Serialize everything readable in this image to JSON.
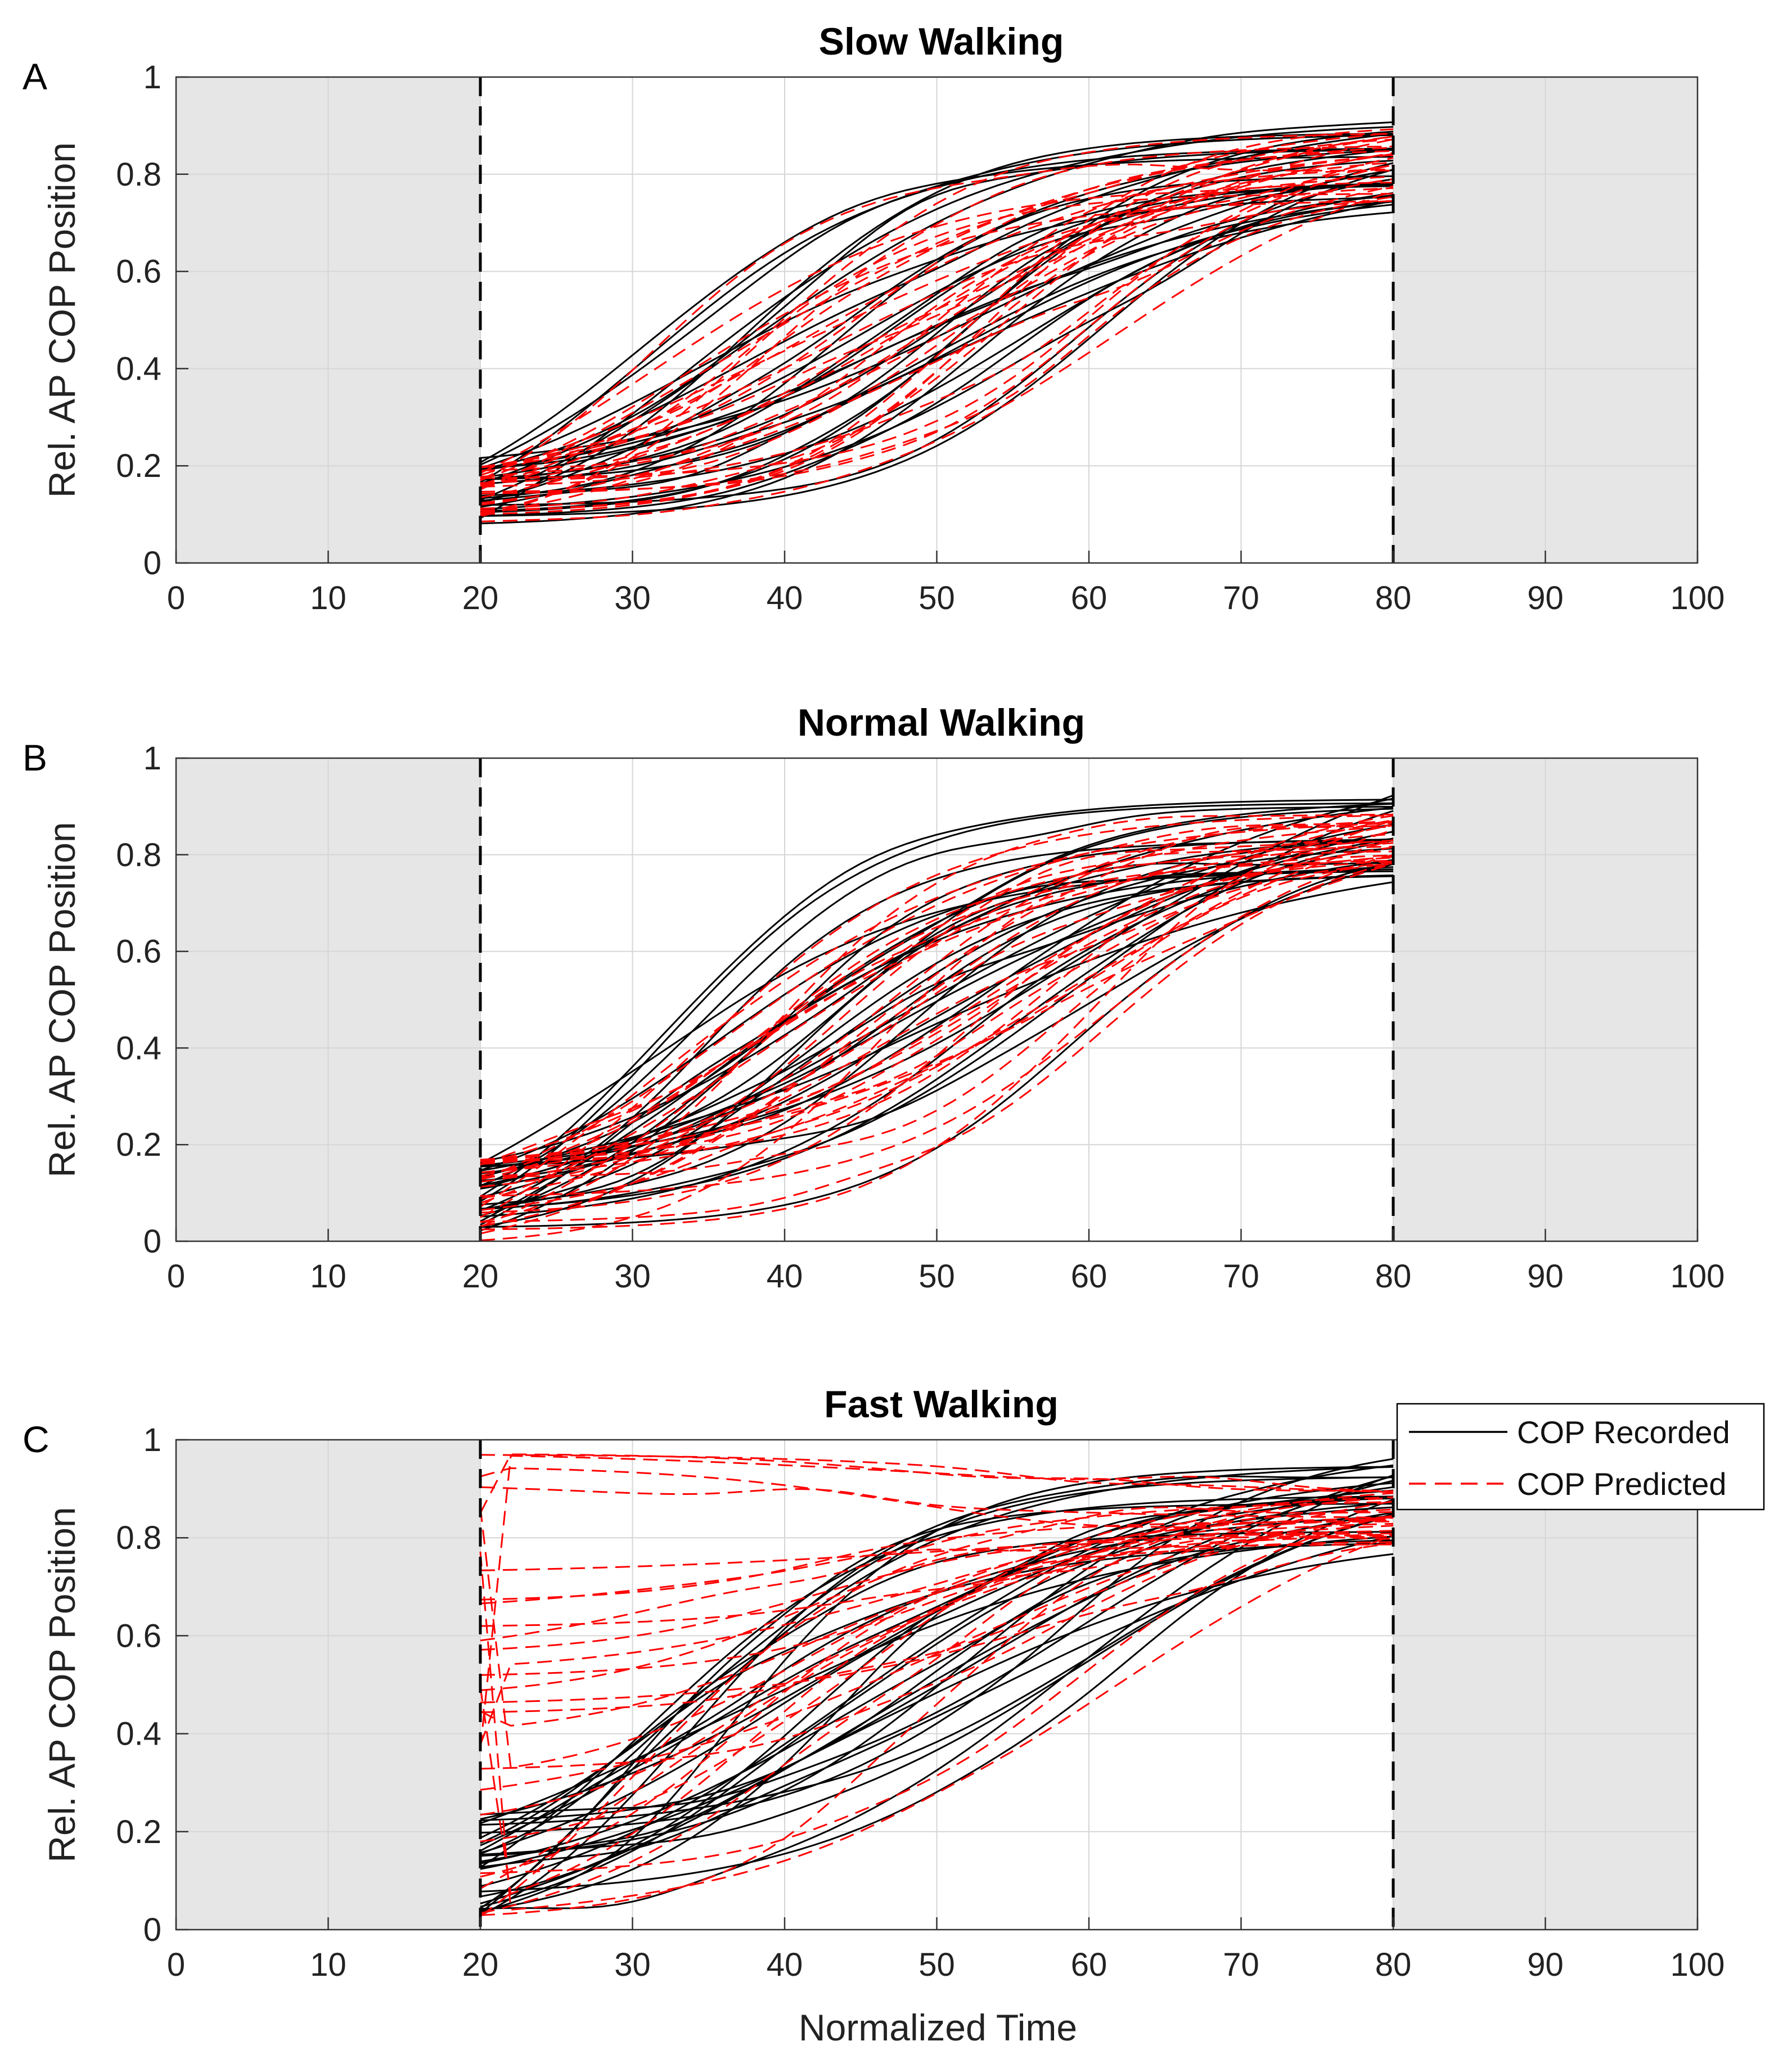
{
  "chart_data": {
    "type": "line",
    "xlabel": "Normalized Time",
    "x_range": [
      0,
      100
    ],
    "y_range": [
      0,
      1
    ],
    "x_ticks": [
      "0",
      "10",
      "20",
      "30",
      "40",
      "50",
      "60",
      "70",
      "80",
      "90",
      "100"
    ],
    "y_ticks": [
      "0",
      "0.2",
      "0.4",
      "0.6",
      "0.8",
      "1"
    ],
    "grid": true,
    "shaded_regions": [
      [
        0,
        20
      ],
      [
        80,
        100
      ]
    ],
    "vertical_dashed_lines": [
      20,
      80
    ],
    "colors": {
      "recorded": "#000000",
      "predicted": "#ff0000",
      "shade": "#e6e6e6"
    },
    "legend": {
      "position": "top-right of panel C",
      "entries": [
        "COP Recorded",
        "COP Predicted"
      ]
    },
    "panels": [
      {
        "letter": "A",
        "title": "Slow Walking",
        "ylabel": "Rel. AP COP Position",
        "series": [
          {
            "name": "COP Recorded",
            "trials": 30,
            "start_range": [
              0.08,
              0.22
            ],
            "end_range": [
              0.72,
              0.91
            ]
          },
          {
            "name": "COP Predicted",
            "trials": 30,
            "start_range": [
              0.07,
              0.2
            ],
            "end_range": [
              0.74,
              0.9
            ]
          }
        ]
      },
      {
        "letter": "B",
        "title": "Normal Walking",
        "ylabel": "Rel. AP COP Position",
        "series": [
          {
            "name": "COP Recorded",
            "trials": 30,
            "start_range": [
              0.02,
              0.17
            ],
            "end_range": [
              0.74,
              0.93
            ]
          },
          {
            "name": "COP Predicted",
            "trials": 30,
            "start_range": [
              0.0,
              0.18
            ],
            "end_range": [
              0.78,
              0.9
            ]
          }
        ]
      },
      {
        "letter": "C",
        "title": "Fast Walking",
        "ylabel": "Rel. AP COP Position",
        "series": [
          {
            "name": "COP Recorded",
            "trials": 30,
            "start_range": [
              0.02,
              0.25
            ],
            "end_range": [
              0.76,
              0.97
            ]
          },
          {
            "name": "COP Predicted",
            "trials": 30,
            "start_range": [
              0.0,
              1.0
            ],
            "end_range": [
              0.78,
              0.9
            ]
          }
        ]
      }
    ]
  }
}
